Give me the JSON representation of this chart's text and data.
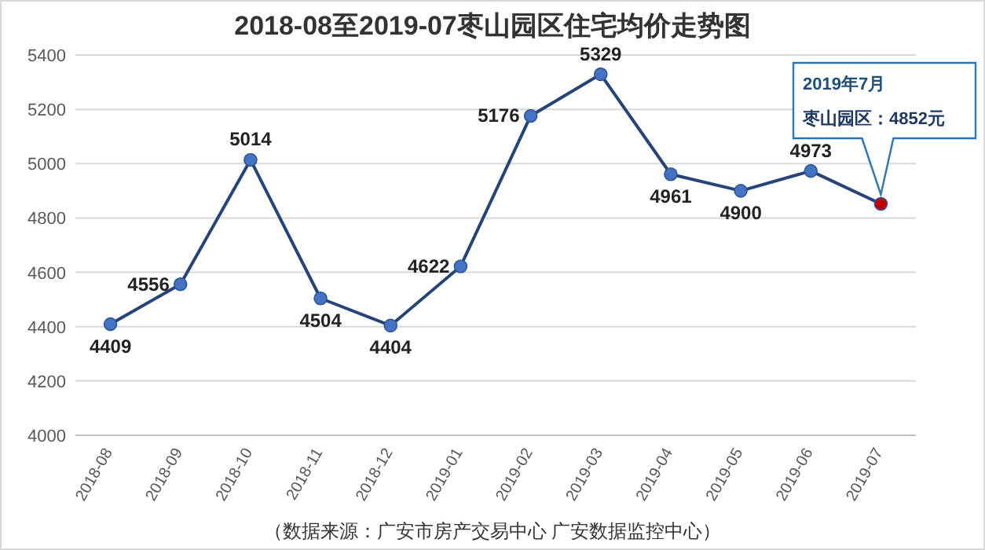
{
  "chart_data": {
    "type": "line",
    "title": "2018-08至2019-07枣山园区住宅均价走势图",
    "categories": [
      "2018-08",
      "2018-09",
      "2018-10",
      "2018-11",
      "2018-12",
      "2019-01",
      "2019-02",
      "2019-03",
      "2019-04",
      "2019-05",
      "2019-06",
      "2019-07"
    ],
    "series": [
      {
        "color": "#264478",
        "values": [
          4409,
          4556,
          5014,
          4504,
          4404,
          4622,
          5176,
          5329,
          4961,
          4900,
          4973,
          4852
        ],
        "colors": [
          "#4472c4",
          "#4472c4",
          "#4472c4",
          "#4472c4",
          "#4472c4",
          "#4472c4",
          "#4472c4",
          "#4472c4",
          "#4472c4",
          "#4472c4",
          "#4472c4",
          "#c00000"
        ],
        "value_labels": [
          "4409",
          "4556",
          "5014",
          "4504",
          "4404",
          "4622",
          "5176",
          "5329",
          "4961",
          "4900",
          "4973",
          null
        ]
      }
    ],
    "ylim": [
      4000,
      5400
    ],
    "yticks": [
      4000,
      4200,
      4400,
      4600,
      4800,
      5000,
      5200,
      5400
    ],
    "grid": "y",
    "marker": "circle",
    "line_style": "solid",
    "annotations": [
      "2019年7月",
      "枣山园区：4852元",
      "（数据来源：广安市房产交易中心 广安数据监控中心）"
    ]
  }
}
